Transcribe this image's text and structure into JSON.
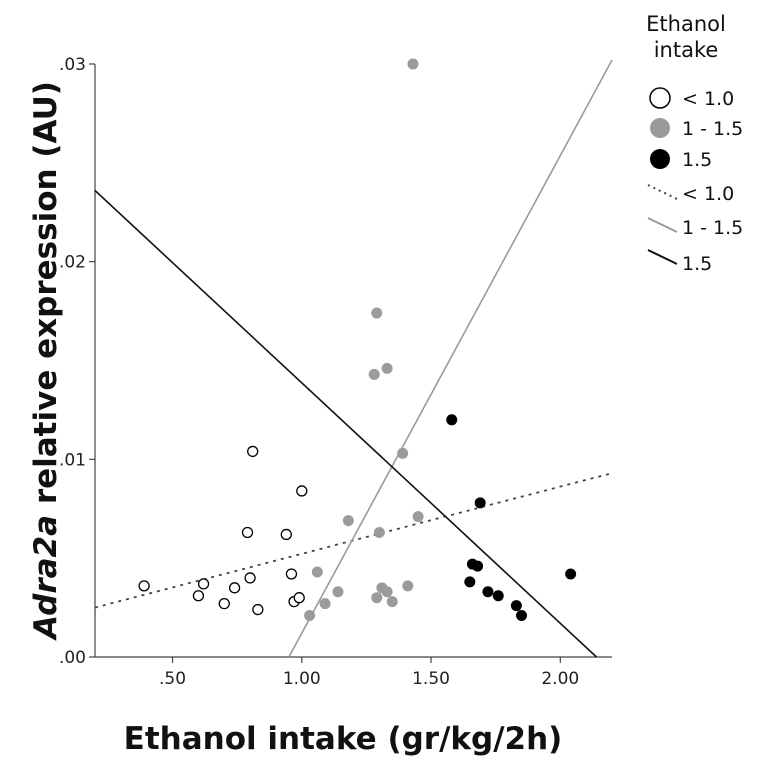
{
  "chart_data": {
    "type": "scatter",
    "xlabel": "Ethanol intake (gr/kg/2h)",
    "ylabel_italic": "Adra2a",
    "ylabel_rest": " relative expression (AU)",
    "xlim": [
      0.2,
      2.2
    ],
    "ylim": [
      0.0,
      0.03
    ],
    "xticks": [
      0.5,
      1.0,
      1.5,
      2.0
    ],
    "xtick_labels": [
      ".50",
      "1.00",
      "1.50",
      "2.00"
    ],
    "yticks": [
      0.0,
      0.01,
      0.02,
      0.03
    ],
    "ytick_labels": [
      ".00",
      ".01",
      ".02",
      ".03"
    ],
    "grid": false,
    "legend_position": "top-right",
    "legend_title": [
      "Ethanol",
      "intake"
    ],
    "series": [
      {
        "name": "< 1.0",
        "marker": "open-circle",
        "color": "#000000",
        "points": [
          [
            0.39,
            0.0036
          ],
          [
            0.6,
            0.0031
          ],
          [
            0.62,
            0.0037
          ],
          [
            0.7,
            0.0027
          ],
          [
            0.74,
            0.0035
          ],
          [
            0.79,
            0.0063
          ],
          [
            0.8,
            0.004
          ],
          [
            0.81,
            0.0104
          ],
          [
            0.83,
            0.0024
          ],
          [
            0.94,
            0.0062
          ],
          [
            0.96,
            0.0042
          ],
          [
            0.97,
            0.0028
          ],
          [
            0.99,
            0.003
          ],
          [
            1.0,
            0.0084
          ]
        ]
      },
      {
        "name": "1 - 1.5",
        "marker": "filled-circle",
        "color": "#9b9b9b",
        "points": [
          [
            1.03,
            0.0021
          ],
          [
            1.06,
            0.0043
          ],
          [
            1.09,
            0.0027
          ],
          [
            1.14,
            0.0033
          ],
          [
            1.18,
            0.0069
          ],
          [
            1.28,
            0.0143
          ],
          [
            1.29,
            0.0174
          ],
          [
            1.29,
            0.003
          ],
          [
            1.3,
            0.0063
          ],
          [
            1.31,
            0.0035
          ],
          [
            1.33,
            0.0033
          ],
          [
            1.33,
            0.0146
          ],
          [
            1.35,
            0.0028
          ],
          [
            1.39,
            0.0103
          ],
          [
            1.41,
            0.0036
          ],
          [
            1.43,
            0.03
          ],
          [
            1.45,
            0.0071
          ]
        ]
      },
      {
        "name": "1.5",
        "marker": "filled-circle",
        "color": "#000000",
        "points": [
          [
            1.58,
            0.012
          ],
          [
            1.65,
            0.0038
          ],
          [
            1.66,
            0.0047
          ],
          [
            1.68,
            0.0046
          ],
          [
            1.69,
            0.0078
          ],
          [
            1.72,
            0.0033
          ],
          [
            1.76,
            0.0031
          ],
          [
            1.83,
            0.0026
          ],
          [
            1.85,
            0.0021
          ],
          [
            2.04,
            0.0042
          ]
        ]
      }
    ],
    "fit_lines": [
      {
        "name": "< 1.0",
        "style": "dotted",
        "color": "#444444",
        "from": [
          0.2,
          0.0025
        ],
        "to": [
          2.2,
          0.0093
        ]
      },
      {
        "name": "1 - 1.5",
        "style": "solid",
        "color": "#9b9b9b",
        "from": [
          0.95,
          0.0
        ],
        "to": [
          2.2,
          0.0302
        ]
      },
      {
        "name": "1.5",
        "style": "solid",
        "color": "#111111",
        "from": [
          0.2,
          0.0236
        ],
        "to": [
          2.14,
          0.0
        ]
      }
    ]
  }
}
